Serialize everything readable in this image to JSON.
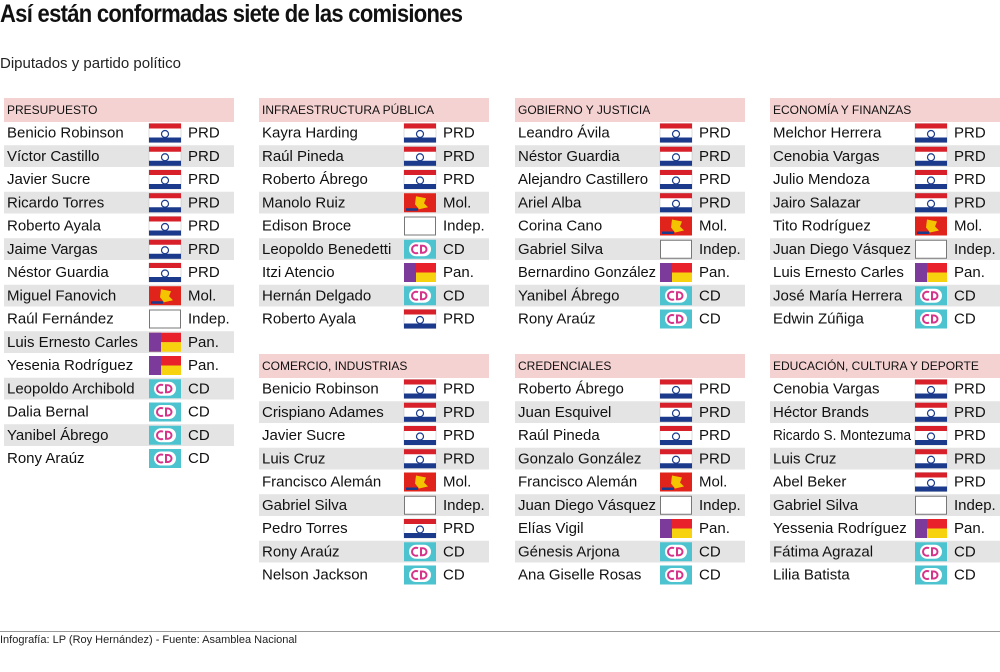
{
  "title": "Así están conformadas siete de las comisiones",
  "subtitle": "Diputados y partido político",
  "committees": [
    {
      "name": "PRESUPUESTO",
      "members": [
        {
          "name": "Benicio Robinson",
          "party": "PRD"
        },
        {
          "name": "Víctor Castillo",
          "party": "PRD"
        },
        {
          "name": "Javier Sucre",
          "party": "PRD"
        },
        {
          "name": "Ricardo Torres",
          "party": "PRD"
        },
        {
          "name": "Roberto Ayala",
          "party": "PRD"
        },
        {
          "name": "Jaime Vargas",
          "party": "PRD"
        },
        {
          "name": "Néstor Guardia",
          "party": "PRD"
        },
        {
          "name": "Miguel Fanovich",
          "party": "Mol."
        },
        {
          "name": "Raúl Fernández",
          "party": "Indep."
        },
        {
          "name": "Luis Ernesto Carles",
          "party": "Pan."
        },
        {
          "name": "Yesenia Rodríguez",
          "party": "Pan."
        },
        {
          "name": "Leopoldo Archibold",
          "party": "CD"
        },
        {
          "name": "Dalia Bernal",
          "party": "CD"
        },
        {
          "name": "Yanibel Ábrego",
          "party": "CD"
        },
        {
          "name": "Rony Araúz",
          "party": "CD"
        }
      ]
    },
    {
      "name": "INFRAESTRUCTURA PÚBLICA",
      "members": [
        {
          "name": "Kayra Harding",
          "party": "PRD"
        },
        {
          "name": "Raúl Pineda",
          "party": "PRD"
        },
        {
          "name": "Roberto Ábrego",
          "party": "PRD"
        },
        {
          "name": "Manolo Ruiz",
          "party": "Mol."
        },
        {
          "name": "Edison Broce",
          "party": "Indep."
        },
        {
          "name": "Leopoldo Benedetti",
          "party": "CD"
        },
        {
          "name": "Itzi Atencio",
          "party": "Pan."
        },
        {
          "name": "Hernán Delgado",
          "party": "CD"
        },
        {
          "name": "Roberto Ayala",
          "party": "PRD"
        }
      ]
    },
    {
      "name": "GOBIERNO Y JUSTICIA",
      "members": [
        {
          "name": "Leandro Ávila",
          "party": "PRD"
        },
        {
          "name": "Néstor Guardia",
          "party": "PRD"
        },
        {
          "name": "Alejandro Castillero",
          "party": "PRD"
        },
        {
          "name": "Ariel Alba",
          "party": "PRD"
        },
        {
          "name": "Corina Cano",
          "party": "Mol."
        },
        {
          "name": "Gabriel Silva",
          "party": "Indep."
        },
        {
          "name": "Bernardino González",
          "party": "Pan."
        },
        {
          "name": "Yanibel Ábrego",
          "party": "CD"
        },
        {
          "name": "Rony Araúz",
          "party": "CD"
        }
      ]
    },
    {
      "name": "ECONOMÍA Y FINANZAS",
      "members": [
        {
          "name": "Melchor Herrera",
          "party": "PRD"
        },
        {
          "name": "Cenobia Vargas",
          "party": "PRD"
        },
        {
          "name": "Julio Mendoza",
          "party": "PRD"
        },
        {
          "name": "Jairo Salazar",
          "party": "PRD"
        },
        {
          "name": "Tito Rodríguez",
          "party": "Mol."
        },
        {
          "name": "Juan Diego Vásquez",
          "party": "Indep."
        },
        {
          "name": "Luis Ernesto Carles",
          "party": "Pan."
        },
        {
          "name": "José María Herrera",
          "party": "CD"
        },
        {
          "name": "Edwin Zúñiga",
          "party": "CD"
        }
      ]
    },
    {
      "name": "COMERCIO, INDUSTRIAS",
      "members": [
        {
          "name": "Benicio Robinson",
          "party": "PRD"
        },
        {
          "name": "Crispiano Adames",
          "party": "PRD"
        },
        {
          "name": "Javier Sucre",
          "party": "PRD"
        },
        {
          "name": "Luis Cruz",
          "party": "PRD"
        },
        {
          "name": "Francisco Alemán",
          "party": "Mol."
        },
        {
          "name": "Gabriel Silva",
          "party": "Indep."
        },
        {
          "name": "Pedro Torres",
          "party": "PRD"
        },
        {
          "name": "Rony Araúz",
          "party": "CD"
        },
        {
          "name": "Nelson Jackson",
          "party": "CD"
        }
      ]
    },
    {
      "name": "CREDENCIALES",
      "members": [
        {
          "name": "Roberto Ábrego",
          "party": "PRD"
        },
        {
          "name": "Juan Esquivel",
          "party": "PRD"
        },
        {
          "name": "Raúl Pineda",
          "party": "PRD"
        },
        {
          "name": "Gonzalo González",
          "party": "PRD"
        },
        {
          "name": "Francisco Alemán",
          "party": "Mol."
        },
        {
          "name": "Juan Diego Vásquez",
          "party": "Indep."
        },
        {
          "name": "Elías Vigil",
          "party": "Pan."
        },
        {
          "name": "Génesis Arjona",
          "party": "CD"
        },
        {
          "name": "Ana Giselle Rosas",
          "party": "CD"
        }
      ]
    },
    {
      "name": "EDUCACIÓN, CULTURA Y DEPORTE",
      "members": [
        {
          "name": "Cenobia Vargas",
          "party": "PRD"
        },
        {
          "name": "Héctor Brands",
          "party": "PRD"
        },
        {
          "name": "Ricardo S. Montezuma",
          "party": "PRD"
        },
        {
          "name": "Luis Cruz",
          "party": "PRD"
        },
        {
          "name": "Abel Beker",
          "party": "PRD"
        },
        {
          "name": "Gabriel Silva",
          "party": "Indep."
        },
        {
          "name": "Yessenia Rodríguez",
          "party": "Pan."
        },
        {
          "name": "Fátima Agrazal",
          "party": "CD"
        },
        {
          "name": "Lilia Batista",
          "party": "CD"
        }
      ]
    }
  ],
  "footer": "Infografía: LP (Roy Hernández) - Fuente: Asamblea Nacional"
}
